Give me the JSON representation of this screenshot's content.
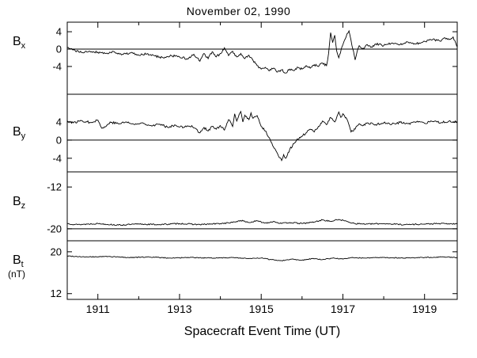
{
  "chart_data": {
    "type": "line",
    "title": "November 02, 1990",
    "xlabel": "Spacecraft Event Time (UT)",
    "x_tick_labels": [
      "1911",
      "1913",
      "1915",
      "1917",
      "1919"
    ],
    "x_ticks_major": [
      1911,
      1913,
      1915,
      1917,
      1919
    ],
    "x_ticks_minor": [
      1912,
      1914,
      1916,
      1918
    ],
    "xlim": [
      1910.25,
      1919.8
    ],
    "line_color": "#000000",
    "panels": [
      {
        "name": "Bx",
        "label_base": "B",
        "label_sub": "x",
        "unit": "",
        "ylim": [
          6.2,
          -10.4
        ],
        "yticks": [
          4,
          0,
          -4
        ],
        "ref_lines": [
          0
        ],
        "noise": 0.25,
        "seed": 41,
        "x": [
          1910.25,
          1910.4,
          1910.6,
          1910.8,
          1911.0,
          1911.2,
          1911.4,
          1911.6,
          1911.8,
          1912.0,
          1912.2,
          1912.4,
          1912.6,
          1912.8,
          1913.0,
          1913.2,
          1913.35,
          1913.5,
          1913.6,
          1913.7,
          1913.8,
          1913.9,
          1914.0,
          1914.1,
          1914.2,
          1914.3,
          1914.4,
          1914.5,
          1914.6,
          1914.7,
          1914.8,
          1914.9,
          1915.0,
          1915.1,
          1915.2,
          1915.3,
          1915.4,
          1915.5,
          1915.6,
          1915.7,
          1915.8,
          1915.9,
          1916.0,
          1916.1,
          1916.2,
          1916.3,
          1916.4,
          1916.5,
          1916.6,
          1916.65,
          1916.7,
          1916.75,
          1916.8,
          1916.85,
          1916.9,
          1917.0,
          1917.1,
          1917.15,
          1917.2,
          1917.3,
          1917.35,
          1917.4,
          1917.5,
          1917.6,
          1917.7,
          1917.8,
          1918.0,
          1918.2,
          1918.4,
          1918.6,
          1918.8,
          1919.0,
          1919.2,
          1919.4,
          1919.5,
          1919.6,
          1919.7,
          1919.8
        ],
        "y": [
          0.3,
          -0.2,
          -0.8,
          -0.5,
          -0.7,
          -1.0,
          -0.6,
          -1.2,
          -0.9,
          -1.4,
          -1.1,
          -1.6,
          -2.0,
          -1.5,
          -1.8,
          -2.3,
          -1.2,
          -2.8,
          -1.0,
          -2.2,
          -0.6,
          -1.8,
          -1.0,
          0.3,
          -1.5,
          -0.5,
          -1.8,
          -1.0,
          -2.2,
          -1.4,
          -2.6,
          -3.8,
          -4.6,
          -4.2,
          -5.0,
          -4.4,
          -5.3,
          -4.8,
          -5.5,
          -4.6,
          -5.0,
          -4.2,
          -4.6,
          -3.8,
          -4.4,
          -3.6,
          -4.0,
          -3.2,
          -3.8,
          -1.0,
          3.8,
          1.5,
          3.2,
          -0.5,
          -2.0,
          1.0,
          3.5,
          4.2,
          2.0,
          -2.5,
          -0.5,
          0.8,
          0.2,
          1.0,
          0.5,
          1.2,
          0.8,
          1.4,
          1.0,
          1.6,
          1.2,
          1.8,
          2.2,
          1.8,
          2.6,
          2.2,
          2.8,
          0.5
        ]
      },
      {
        "name": "By",
        "label_base": "B",
        "label_sub": "y",
        "unit": "",
        "ylim": [
          10.1,
          -7.0
        ],
        "yticks": [
          4,
          0,
          -4
        ],
        "ref_lines": [
          0
        ],
        "noise": 0.25,
        "seed": 77,
        "x": [
          1910.25,
          1910.4,
          1910.6,
          1910.8,
          1911.0,
          1911.1,
          1911.2,
          1911.3,
          1911.5,
          1911.7,
          1911.9,
          1912.1,
          1912.3,
          1912.5,
          1912.7,
          1912.9,
          1913.1,
          1913.3,
          1913.5,
          1913.6,
          1913.7,
          1913.8,
          1913.9,
          1914.0,
          1914.1,
          1914.2,
          1914.3,
          1914.35,
          1914.4,
          1914.5,
          1914.55,
          1914.6,
          1914.7,
          1914.75,
          1914.8,
          1914.9,
          1915.0,
          1915.1,
          1915.2,
          1915.3,
          1915.4,
          1915.5,
          1915.55,
          1915.6,
          1915.7,
          1915.8,
          1915.9,
          1916.0,
          1916.1,
          1916.2,
          1916.3,
          1916.4,
          1916.5,
          1916.6,
          1916.7,
          1916.8,
          1916.9,
          1916.95,
          1917.0,
          1917.1,
          1917.2,
          1917.3,
          1917.4,
          1917.5,
          1917.6,
          1917.8,
          1918.0,
          1918.2,
          1918.4,
          1918.6,
          1918.8,
          1919.0,
          1919.2,
          1919.4,
          1919.6,
          1919.8
        ],
        "y": [
          4.2,
          3.8,
          4.3,
          3.9,
          4.4,
          2.6,
          3.0,
          4.0,
          3.6,
          4.0,
          3.4,
          3.8,
          3.2,
          3.5,
          2.9,
          3.3,
          2.8,
          3.2,
          1.6,
          2.8,
          2.0,
          3.0,
          2.4,
          3.2,
          2.2,
          4.5,
          3.0,
          5.8,
          4.2,
          6.3,
          4.0,
          5.5,
          4.5,
          6.0,
          4.8,
          5.4,
          3.0,
          2.0,
          0.5,
          -1.5,
          -3.0,
          -4.5,
          -3.2,
          -4.0,
          -2.0,
          -0.8,
          0.2,
          0.8,
          1.6,
          2.4,
          1.8,
          3.0,
          4.2,
          3.4,
          5.0,
          4.0,
          6.2,
          5.0,
          5.8,
          4.6,
          1.8,
          2.4,
          3.6,
          3.2,
          3.8,
          3.4,
          3.8,
          3.5,
          3.9,
          3.6,
          4.0,
          3.7,
          4.1,
          3.8,
          4.2,
          4.0
        ]
      },
      {
        "name": "Bz",
        "label_base": "B",
        "label_sub": "z",
        "unit": "",
        "ylim": [
          -9.1,
          -22.3
        ],
        "yticks": [
          -12,
          -20
        ],
        "ref_lines": [
          -20
        ],
        "noise": 0.12,
        "seed": 13,
        "x": [
          1910.25,
          1910.5,
          1911.0,
          1911.5,
          1912.0,
          1912.5,
          1913.0,
          1913.5,
          1914.0,
          1914.3,
          1914.5,
          1914.7,
          1914.9,
          1915.1,
          1915.3,
          1915.5,
          1915.7,
          1916.0,
          1916.3,
          1916.5,
          1916.7,
          1916.9,
          1917.1,
          1917.3,
          1917.6,
          1918.0,
          1918.5,
          1919.0,
          1919.4,
          1919.8
        ],
        "y": [
          -19.0,
          -19.2,
          -19.0,
          -19.3,
          -19.1,
          -19.2,
          -19.0,
          -19.2,
          -19.0,
          -18.8,
          -18.4,
          -18.8,
          -18.5,
          -18.9,
          -18.6,
          -19.0,
          -18.8,
          -19.0,
          -18.7,
          -18.3,
          -18.6,
          -18.2,
          -18.6,
          -19.0,
          -19.1,
          -19.0,
          -19.2,
          -19.1,
          -19.0,
          -19.1
        ]
      },
      {
        "name": "Bt",
        "label_base": "B",
        "label_sub": "t",
        "unit": "(nT)",
        "ylim": [
          22.1,
          10.9
        ],
        "yticks": [
          20,
          12
        ],
        "ref_lines": [],
        "noise": 0.08,
        "seed": 99,
        "x": [
          1910.25,
          1910.75,
          1911.25,
          1911.75,
          1912.25,
          1912.75,
          1913.25,
          1913.75,
          1914.25,
          1914.75,
          1915.0,
          1915.25,
          1915.5,
          1915.75,
          1916.0,
          1916.25,
          1916.5,
          1916.75,
          1917.0,
          1917.25,
          1917.5,
          1918.0,
          1918.5,
          1919.0,
          1919.5,
          1919.8
        ],
        "y": [
          19.2,
          19.0,
          19.1,
          18.9,
          19.0,
          18.8,
          18.9,
          18.8,
          18.9,
          18.7,
          18.8,
          18.5,
          18.3,
          18.6,
          18.4,
          18.7,
          18.5,
          18.8,
          18.6,
          18.9,
          18.8,
          18.9,
          18.8,
          18.9,
          19.0,
          18.9
        ]
      }
    ]
  }
}
